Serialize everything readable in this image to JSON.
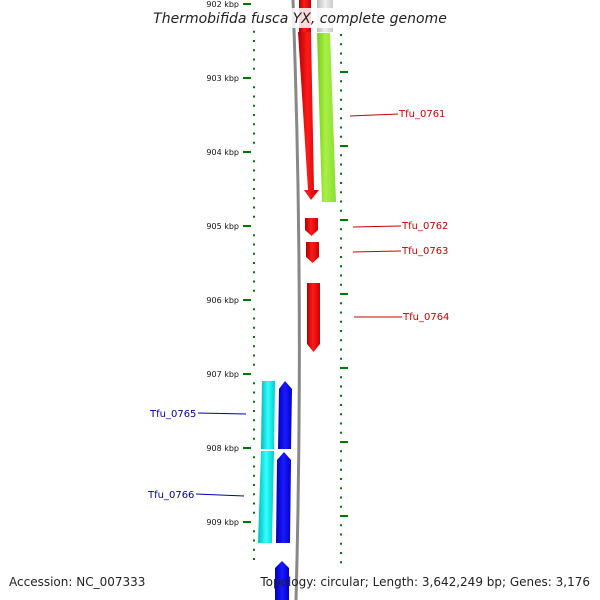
{
  "title": "Thermobifida fusca YX, complete genome",
  "footer": {
    "accession": "Accession: NC_007333",
    "topology": "Topology: circular; Length: 3,642,249 bp; Genes: 3,176"
  },
  "scale": {
    "labels": [
      "902 kbp",
      "903 kbp",
      "904 kbp",
      "905 kbp",
      "906 kbp",
      "907 kbp",
      "908 kbp",
      "909 kbp"
    ]
  },
  "genes": [
    {
      "name": "Tfu_0761",
      "color": "#cc0000"
    },
    {
      "name": "Tfu_0762",
      "color": "#cc0000"
    },
    {
      "name": "Tfu_0763",
      "color": "#cc0000"
    },
    {
      "name": "Tfu_0764",
      "color": "#cc0000"
    },
    {
      "name": "Tfu_0765",
      "color": "#0000aa"
    },
    {
      "name": "Tfu_0766",
      "color": "#0000aa"
    }
  ],
  "colors": {
    "forward_cds": "#ff0000",
    "forward_feature": "#99ee33",
    "reverse_cds": "#0000ee",
    "reverse_feature": "#00dddd",
    "ticks": "#007700",
    "backbone": "#888888"
  }
}
